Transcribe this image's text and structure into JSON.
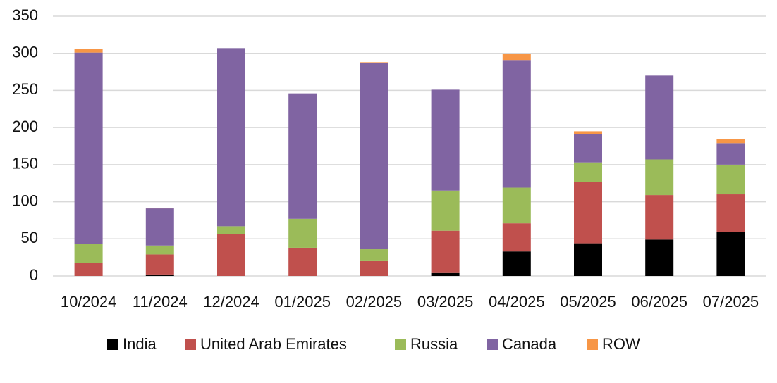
{
  "chart_data": {
    "type": "stacked_bar",
    "categories": [
      "10/2024",
      "11/2024",
      "12/2024",
      "01/2025",
      "02/2025",
      "03/2025",
      "04/2025",
      "05/2025",
      "06/2025",
      "07/2025"
    ],
    "series": [
      {
        "name": "India",
        "color": "#000000",
        "values": [
          0,
          2,
          0,
          0,
          0,
          4,
          33,
          44,
          49,
          59
        ]
      },
      {
        "name": "United Arab Emirates",
        "color": "#c0504d",
        "values": [
          18,
          27,
          56,
          38,
          20,
          57,
          38,
          83,
          60,
          51
        ]
      },
      {
        "name": "Russia",
        "color": "#9bbb59",
        "values": [
          25,
          12,
          11,
          39,
          16,
          54,
          48,
          26,
          48,
          40
        ]
      },
      {
        "name": "Canada",
        "color": "#8064a2",
        "values": [
          258,
          50,
          240,
          169,
          251,
          136,
          172,
          38,
          113,
          29
        ]
      },
      {
        "name": "ROW",
        "color": "#f79646",
        "values": [
          5,
          1,
          0,
          0,
          1,
          0,
          8,
          4,
          0,
          5
        ]
      }
    ],
    "ylim": [
      0,
      350
    ],
    "yticks": [
      0,
      50,
      100,
      150,
      200,
      250,
      300,
      350
    ],
    "grid": true,
    "legend": "bottom"
  }
}
